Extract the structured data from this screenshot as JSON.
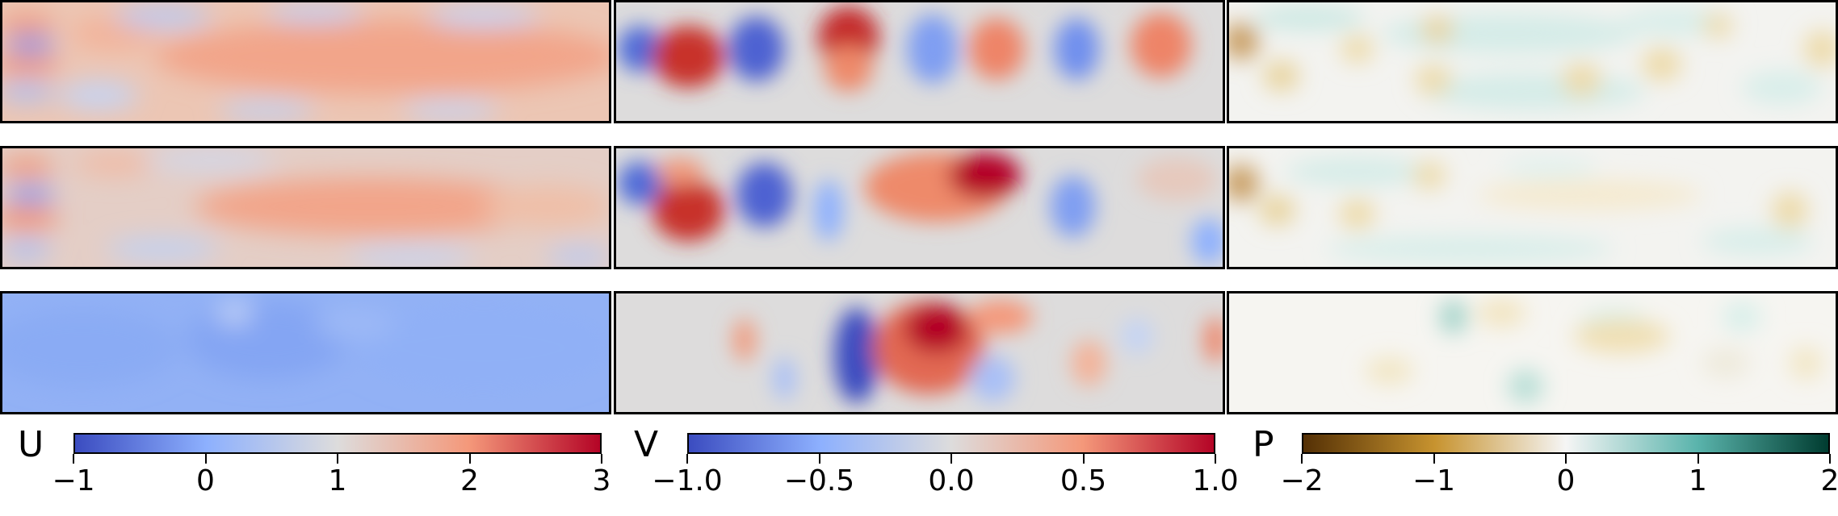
{
  "chart_data": {
    "type": "heatmap",
    "grid": {
      "rows": 3,
      "columns": [
        "U",
        "V",
        "P"
      ]
    },
    "colorbars": [
      {
        "label": "U",
        "colormap": "coolwarm",
        "range": [
          -1,
          3
        ],
        "ticks": [
          -1,
          0,
          1,
          2,
          3
        ],
        "tick_labels": [
          "−1",
          "0",
          "1",
          "2",
          "3"
        ],
        "stops": [
          "#3b4cc0",
          "#8db0fe",
          "#dddcdc",
          "#f4987a",
          "#b40426"
        ]
      },
      {
        "label": "V",
        "colormap": "coolwarm",
        "range": [
          -1.0,
          1.0
        ],
        "ticks": [
          -1.0,
          -0.5,
          0.0,
          0.5,
          1.0
        ],
        "tick_labels": [
          "−1.0",
          "−0.5",
          "0.0",
          "0.5",
          "1.0"
        ],
        "stops": [
          "#3b4cc0",
          "#8db0fe",
          "#dddcdc",
          "#f4987a",
          "#b40426"
        ]
      },
      {
        "label": "P",
        "colormap": "BrBG",
        "range": [
          -2,
          2
        ],
        "ticks": [
          -2,
          -1,
          0,
          1,
          2
        ],
        "tick_labels": [
          "−2",
          "−1",
          "0",
          "1",
          "2"
        ],
        "stops": [
          "#543005",
          "#c7932f",
          "#f5f5f5",
          "#5ab4ac",
          "#003c30"
        ]
      }
    ]
  }
}
